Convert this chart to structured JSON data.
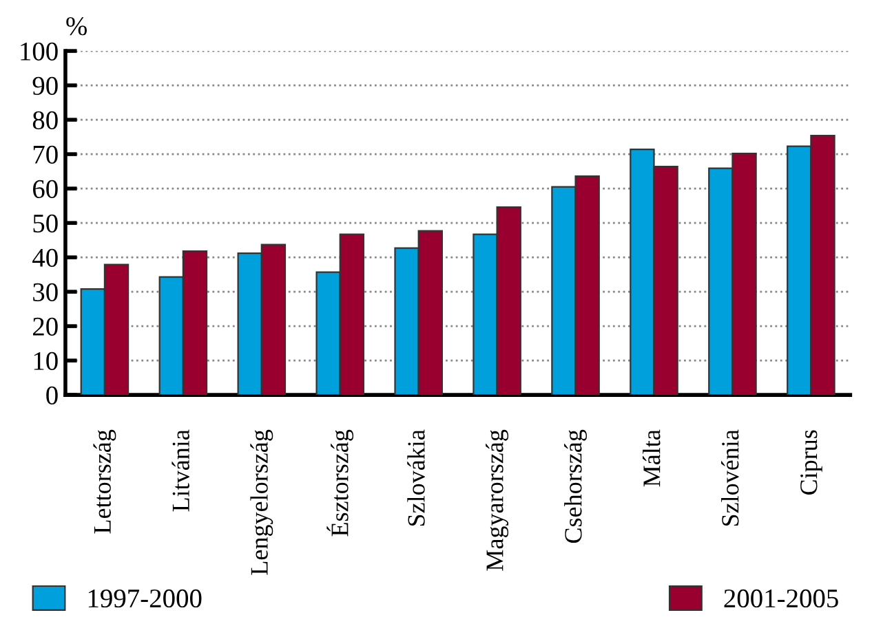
{
  "chart_data": {
    "type": "bar",
    "ylabel": "%",
    "categories": [
      "Lettország",
      "Litvánia",
      "Lengyelország",
      "Észtország",
      "Szlovákia",
      "Magyarország",
      "Csehország",
      "Málta",
      "Szlovénia",
      "Ciprus"
    ],
    "series": [
      {
        "name": "1997-2000",
        "color": "#00a0dc",
        "values": [
          30.8,
          34.3,
          41.2,
          35.7,
          42.7,
          46.7,
          60.5,
          71.4,
          65.9,
          72.3
        ]
      },
      {
        "name": "2001-2005",
        "color": "#990030",
        "values": [
          37.9,
          41.8,
          43.7,
          46.7,
          47.7,
          54.6,
          63.6,
          66.4,
          70.2,
          75.4
        ]
      }
    ],
    "ylim": [
      0,
      100
    ],
    "yticks": [
      0,
      10,
      20,
      30,
      40,
      50,
      60,
      70,
      80,
      90,
      100
    ],
    "grid": "y",
    "legend": "bottom"
  }
}
